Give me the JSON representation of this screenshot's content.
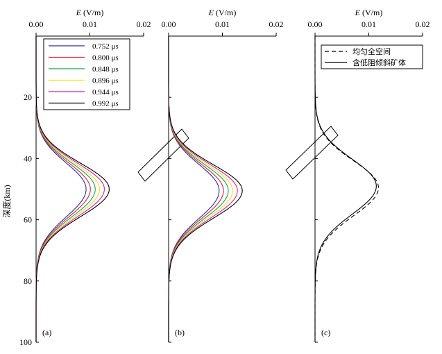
{
  "figure": {
    "ylabel": "深度(km)",
    "xunit": "(V/m)",
    "xvar": "E"
  },
  "chart_data": [
    {
      "type": "line",
      "panel_label": "(a)",
      "xlabel": "E (V/m)",
      "ylabel": "深度(km)",
      "xlim": [
        0,
        0.02
      ],
      "ylim": [
        0,
        100
      ],
      "y_inverted": true,
      "xticks": [
        "0.00",
        "0.01",
        "0.02"
      ],
      "yticks": [
        "20",
        "40",
        "60",
        "80",
        "100"
      ],
      "legend_position": "top-left",
      "series": [
        {
          "name": "0.752 μs",
          "color": "#2b2b9c",
          "peak_depth": 50.0,
          "peak_value": 0.0093,
          "sigma_up": 8.5,
          "sigma_down": 9.0
        },
        {
          "name": "0.800 μs",
          "color": "#d4203c",
          "peak_depth": 50.0,
          "peak_value": 0.0101,
          "sigma_up": 8.5,
          "sigma_down": 9.0
        },
        {
          "name": "0.848 μs",
          "color": "#1c9c5c",
          "peak_depth": 50.0,
          "peak_value": 0.011,
          "sigma_up": 8.5,
          "sigma_down": 9.0
        },
        {
          "name": "0.896 μs",
          "color": "#e8e020",
          "peak_depth": 50.0,
          "peak_value": 0.0118,
          "sigma_up": 8.5,
          "sigma_down": 9.0
        },
        {
          "name": "0.944 μs",
          "color": "#d81ea0",
          "peak_depth": 50.0,
          "peak_value": 0.0127,
          "sigma_up": 8.5,
          "sigma_down": 9.0
        },
        {
          "name": "0.992 μs",
          "color": "#000000",
          "peak_depth": 50.0,
          "peak_value": 0.0136,
          "sigma_up": 8.5,
          "sigma_down": 9.0
        }
      ]
    },
    {
      "type": "line",
      "panel_label": "(b)",
      "xlabel": "E (V/m)",
      "xlim": [
        0,
        0.02
      ],
      "ylim": [
        0,
        100
      ],
      "y_inverted": true,
      "xticks": [
        "0.00",
        "0.01",
        "0.02"
      ],
      "has_inclined_body": true,
      "series": [
        {
          "name": "0.752 μs",
          "color": "#2b2b9c",
          "peak_depth": 50.5,
          "peak_value": 0.0094,
          "sigma_up": 8.5,
          "sigma_down": 9.0
        },
        {
          "name": "0.800 μs",
          "color": "#d4203c",
          "peak_depth": 50.5,
          "peak_value": 0.0102,
          "sigma_up": 8.5,
          "sigma_down": 9.0
        },
        {
          "name": "0.848 μs",
          "color": "#1c9c5c",
          "peak_depth": 50.5,
          "peak_value": 0.0111,
          "sigma_up": 8.5,
          "sigma_down": 9.0
        },
        {
          "name": "0.896 μs",
          "color": "#e8e020",
          "peak_depth": 50.5,
          "peak_value": 0.0119,
          "sigma_up": 8.5,
          "sigma_down": 9.0
        },
        {
          "name": "0.944 μs",
          "color": "#d81ea0",
          "peak_depth": 50.5,
          "peak_value": 0.0128,
          "sigma_up": 8.5,
          "sigma_down": 9.0
        },
        {
          "name": "0.992 μs",
          "color": "#000000",
          "peak_depth": 50.5,
          "peak_value": 0.0137,
          "sigma_up": 8.5,
          "sigma_down": 9.0
        }
      ]
    },
    {
      "type": "line",
      "panel_label": "(c)",
      "xlabel": "E (V/m)",
      "xlim": [
        0,
        0.02
      ],
      "ylim": [
        0,
        100
      ],
      "y_inverted": true,
      "xticks": [
        "0.00",
        "0.01",
        "0.02"
      ],
      "has_inclined_body": true,
      "legend_position": "top-left",
      "series": [
        {
          "name": "均匀全空间",
          "color": "#000000",
          "dash": "6,4",
          "peak_depth": 49.5,
          "peak_value": 0.0118,
          "sigma_up": 8.8,
          "sigma_down": 9.2
        },
        {
          "name": "含低阻倾斜矿体",
          "color": "#000000",
          "dash": "",
          "peak_depth": 49.0,
          "peak_value": 0.0114,
          "sigma_up": 8.8,
          "sigma_down": 9.2
        }
      ]
    }
  ]
}
